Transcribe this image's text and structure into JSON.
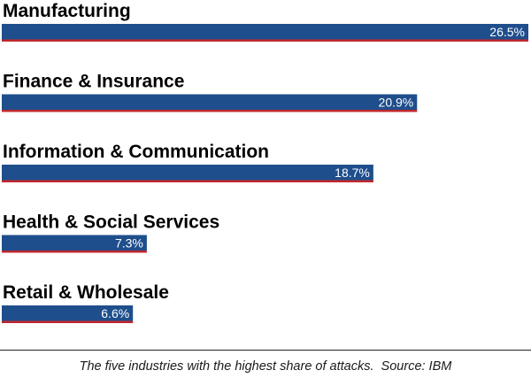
{
  "chart_data": {
    "type": "bar",
    "orientation": "horizontal",
    "categories": [
      "Manufacturing",
      "Finance & Insurance",
      "Information & Communication",
      "Health & Social Services",
      "Retail & Wholesale"
    ],
    "values": [
      26.5,
      20.9,
      18.7,
      7.3,
      6.6
    ],
    "value_labels": [
      "26.5%",
      "20.9%",
      "18.7%",
      "7.3%",
      "6.6%"
    ],
    "unit": "%",
    "xlim": [
      0,
      26.5
    ],
    "grid": false,
    "legend": "none"
  },
  "colors": {
    "bar_fill": "#1f4e8c",
    "bar_underline": "#c0282e",
    "label_text": "#000000",
    "value_text": "#ffffff"
  },
  "caption": {
    "text": "The five industries with the highest share of attacks.  Source: IBM"
  }
}
